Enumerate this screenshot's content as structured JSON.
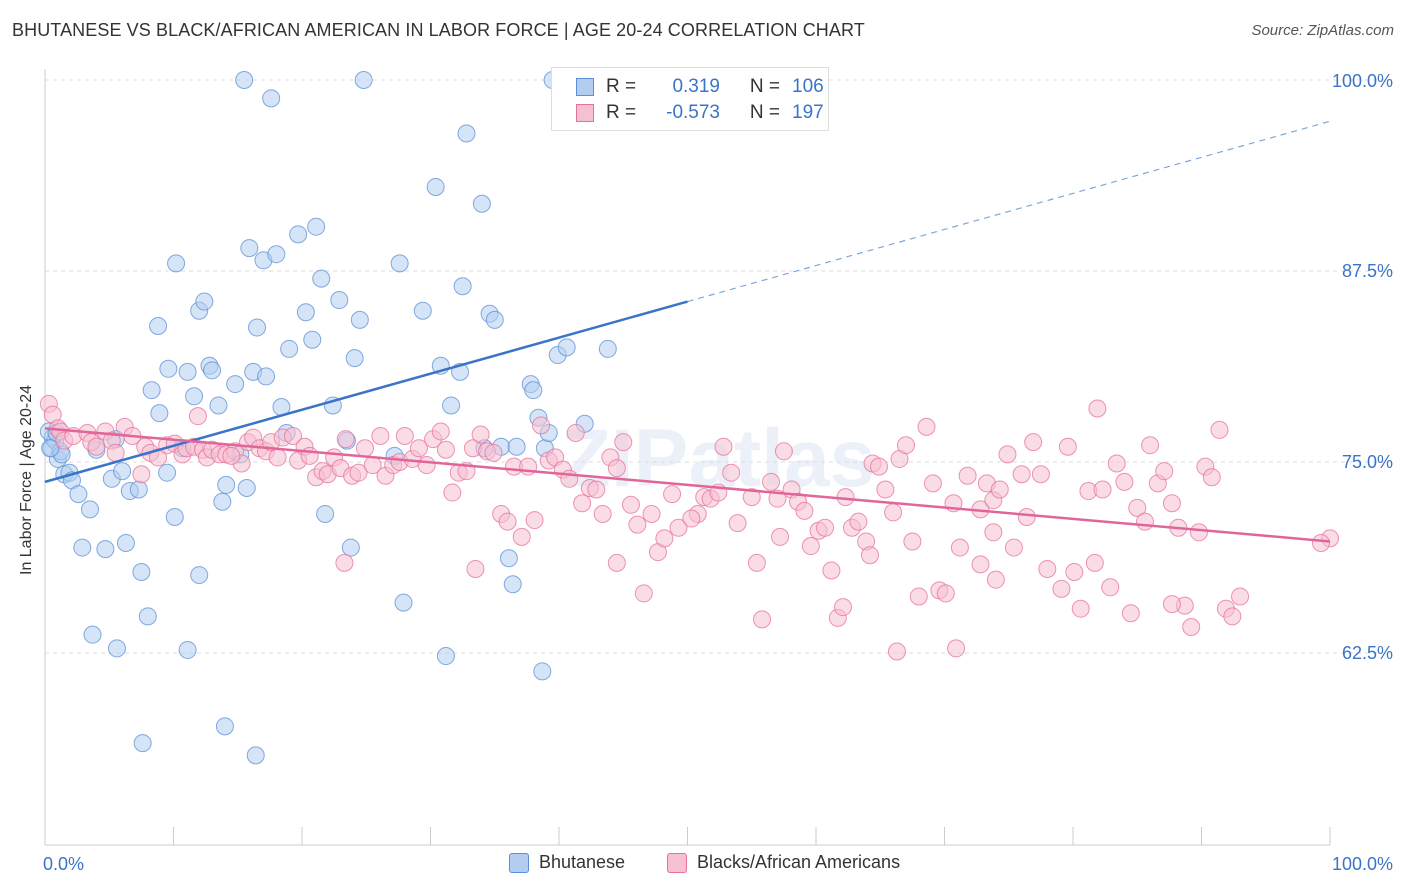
{
  "title": "BHUTANESE VS BLACK/AFRICAN AMERICAN IN LABOR FORCE | AGE 20-24 CORRELATION CHART",
  "source": "Source: ZipAtlas.com",
  "watermark": "ZIPatlas",
  "colors": {
    "blue": "#5b8fd6",
    "blue_fill": "#b3cdf0",
    "pink": "#e8709a",
    "pink_fill": "#f5c0d2",
    "axis_label": "#3a74c8",
    "grid": "#dddddd"
  },
  "legend_top": [
    {
      "r_label": "R =",
      "r": "0.319",
      "n_label": "N =",
      "n": "106"
    },
    {
      "r_label": "R =",
      "r": "-0.573",
      "n_label": "N =",
      "n": "197"
    }
  ],
  "chart_data": {
    "type": "scatter",
    "title": "BHUTANESE VS BLACK/AFRICAN AMERICAN IN LABOR FORCE | AGE 20-24 CORRELATION CHART",
    "xlabel": "",
    "ylabel": "In Labor Force | Age 20-24",
    "xlim": [
      0,
      100
    ],
    "ylim": [
      52.5,
      101.5
    ],
    "x_tick_labels": [
      "0.0%",
      "100.0%"
    ],
    "y_ticks": [
      62.5,
      75.0,
      87.5,
      100.0
    ],
    "y_tick_labels": [
      "62.5%",
      "75.0%",
      "87.5%",
      "100.0%"
    ],
    "grid": true,
    "legend": "bottom",
    "series": [
      {
        "name": "Bhutanese",
        "trend": {
          "x0": 0,
          "y0": 73.7,
          "x1": 50,
          "y1": 85.5,
          "dashed_to_x": 100,
          "dashed_to_y": 97.3
        },
        "points": [
          [
            0.5,
            75.9
          ],
          [
            0.6,
            76.6
          ],
          [
            0.8,
            76.4
          ],
          [
            1.0,
            75.2
          ],
          [
            1.2,
            75.7
          ],
          [
            1.5,
            74.2
          ],
          [
            1.9,
            74.3
          ],
          [
            2.1,
            73.8
          ],
          [
            2.6,
            72.9
          ],
          [
            3.5,
            71.9
          ],
          [
            4.0,
            75.8
          ],
          [
            5.2,
            73.9
          ],
          [
            5.5,
            76.5
          ],
          [
            6.0,
            74.4
          ],
          [
            6.6,
            73.1
          ],
          [
            7.3,
            73.2
          ],
          [
            8.3,
            79.7
          ],
          [
            8.8,
            83.9
          ],
          [
            8.9,
            78.2
          ],
          [
            9.5,
            74.3
          ],
          [
            9.6,
            81.1
          ],
          [
            10.1,
            71.4
          ],
          [
            10.2,
            88.0
          ],
          [
            10.7,
            75.9
          ],
          [
            11.1,
            80.9
          ],
          [
            11.6,
            79.3
          ],
          [
            12.0,
            84.9
          ],
          [
            12.4,
            85.5
          ],
          [
            12.8,
            81.3
          ],
          [
            13.0,
            81.0
          ],
          [
            13.5,
            78.7
          ],
          [
            13.8,
            72.4
          ],
          [
            14.1,
            73.5
          ],
          [
            14.8,
            80.1
          ],
          [
            15.2,
            75.5
          ],
          [
            15.5,
            100.0
          ],
          [
            15.7,
            73.3
          ],
          [
            15.9,
            89.0
          ],
          [
            16.2,
            80.9
          ],
          [
            16.5,
            83.8
          ],
          [
            17.0,
            88.2
          ],
          [
            17.2,
            80.6
          ],
          [
            17.6,
            98.8
          ],
          [
            18.0,
            88.6
          ],
          [
            18.4,
            78.6
          ],
          [
            18.8,
            76.9
          ],
          [
            19.0,
            82.4
          ],
          [
            19.7,
            89.9
          ],
          [
            20.3,
            84.8
          ],
          [
            20.8,
            83.0
          ],
          [
            21.1,
            90.4
          ],
          [
            21.5,
            87.0
          ],
          [
            21.8,
            71.6
          ],
          [
            22.4,
            78.7
          ],
          [
            22.9,
            85.6
          ],
          [
            23.5,
            76.4
          ],
          [
            23.8,
            69.4
          ],
          [
            24.1,
            81.8
          ],
          [
            24.5,
            84.3
          ],
          [
            24.8,
            100.0
          ],
          [
            27.2,
            75.4
          ],
          [
            27.6,
            88.0
          ],
          [
            27.9,
            65.8
          ],
          [
            29.4,
            84.9
          ],
          [
            30.4,
            93.0
          ],
          [
            30.8,
            81.3
          ],
          [
            31.2,
            62.3
          ],
          [
            31.6,
            78.7
          ],
          [
            32.3,
            80.9
          ],
          [
            32.5,
            86.5
          ],
          [
            32.8,
            96.5
          ],
          [
            34.0,
            91.9
          ],
          [
            34.2,
            75.9
          ],
          [
            34.6,
            84.7
          ],
          [
            35.0,
            84.3
          ],
          [
            35.5,
            76.0
          ],
          [
            36.1,
            68.7
          ],
          [
            36.4,
            67.0
          ],
          [
            36.7,
            76.0
          ],
          [
            37.8,
            80.1
          ],
          [
            38.0,
            79.7
          ],
          [
            38.4,
            77.9
          ],
          [
            38.7,
            61.3
          ],
          [
            38.9,
            75.9
          ],
          [
            39.2,
            76.9
          ],
          [
            39.5,
            100.0
          ],
          [
            39.9,
            82.0
          ],
          [
            40.6,
            82.5
          ],
          [
            42.0,
            77.5
          ],
          [
            43.8,
            82.4
          ],
          [
            2.9,
            69.4
          ],
          [
            3.7,
            63.7
          ],
          [
            5.6,
            62.8
          ],
          [
            6.3,
            69.7
          ],
          [
            7.5,
            67.8
          ],
          [
            7.6,
            56.6
          ],
          [
            8.0,
            64.9
          ],
          [
            11.1,
            62.7
          ],
          [
            12.0,
            67.6
          ],
          [
            14.0,
            57.7
          ],
          [
            16.4,
            55.8
          ],
          [
            4.7,
            69.3
          ],
          [
            0.3,
            77.0
          ],
          [
            0.9,
            76.9
          ],
          [
            1.3,
            75.5
          ],
          [
            0.4,
            75.9
          ]
        ]
      },
      {
        "name": "Blacks/African Americans",
        "trend": {
          "x0": 0,
          "y0": 77.2,
          "x1": 100,
          "y1": 69.8
        },
        "points": [
          [
            0.3,
            78.8
          ],
          [
            0.6,
            78.1
          ],
          [
            1.0,
            77.2
          ],
          [
            1.2,
            77.0
          ],
          [
            1.5,
            76.4
          ],
          [
            2.2,
            76.7
          ],
          [
            3.3,
            76.9
          ],
          [
            3.6,
            76.3
          ],
          [
            4.0,
            76.0
          ],
          [
            4.7,
            77.0
          ],
          [
            5.2,
            76.4
          ],
          [
            5.5,
            75.6
          ],
          [
            6.2,
            77.3
          ],
          [
            6.8,
            76.7
          ],
          [
            7.5,
            74.2
          ],
          [
            7.8,
            76.0
          ],
          [
            8.2,
            75.6
          ],
          [
            8.8,
            75.3
          ],
          [
            9.5,
            76.1
          ],
          [
            10.1,
            76.2
          ],
          [
            10.7,
            75.5
          ],
          [
            11.0,
            75.9
          ],
          [
            11.6,
            76.0
          ],
          [
            11.9,
            78.0
          ],
          [
            12.3,
            75.8
          ],
          [
            12.6,
            75.3
          ],
          [
            13.0,
            75.8
          ],
          [
            13.6,
            75.5
          ],
          [
            14.1,
            75.5
          ],
          [
            14.8,
            75.7
          ],
          [
            15.3,
            74.9
          ],
          [
            15.8,
            76.3
          ],
          [
            16.2,
            76.6
          ],
          [
            16.7,
            75.9
          ],
          [
            17.2,
            75.7
          ],
          [
            17.6,
            76.3
          ],
          [
            18.1,
            75.3
          ],
          [
            18.5,
            76.6
          ],
          [
            19.3,
            76.7
          ],
          [
            19.7,
            75.1
          ],
          [
            20.2,
            76.0
          ],
          [
            20.6,
            75.4
          ],
          [
            21.1,
            74.0
          ],
          [
            21.6,
            74.4
          ],
          [
            22.0,
            74.2
          ],
          [
            22.5,
            75.3
          ],
          [
            23.0,
            74.6
          ],
          [
            23.4,
            76.5
          ],
          [
            23.9,
            74.1
          ],
          [
            24.4,
            74.3
          ],
          [
            24.9,
            75.9
          ],
          [
            25.5,
            74.8
          ],
          [
            26.1,
            76.7
          ],
          [
            26.5,
            74.1
          ],
          [
            27.1,
            74.8
          ],
          [
            27.6,
            75.0
          ],
          [
            28.0,
            76.7
          ],
          [
            28.6,
            75.2
          ],
          [
            29.1,
            75.9
          ],
          [
            29.7,
            74.8
          ],
          [
            30.2,
            76.5
          ],
          [
            30.8,
            77.0
          ],
          [
            31.2,
            75.8
          ],
          [
            31.7,
            73.0
          ],
          [
            32.2,
            74.3
          ],
          [
            32.8,
            74.4
          ],
          [
            33.3,
            75.9
          ],
          [
            33.9,
            76.8
          ],
          [
            34.4,
            75.7
          ],
          [
            34.9,
            75.6
          ],
          [
            35.5,
            71.6
          ],
          [
            36.0,
            71.1
          ],
          [
            36.5,
            74.7
          ],
          [
            37.1,
            70.1
          ],
          [
            37.6,
            74.7
          ],
          [
            38.1,
            71.2
          ],
          [
            38.6,
            77.4
          ],
          [
            39.2,
            75.1
          ],
          [
            39.7,
            75.3
          ],
          [
            40.3,
            74.5
          ],
          [
            40.8,
            73.9
          ],
          [
            41.3,
            76.9
          ],
          [
            41.8,
            72.3
          ],
          [
            42.4,
            73.3
          ],
          [
            42.9,
            73.2
          ],
          [
            43.4,
            71.6
          ],
          [
            44.0,
            75.3
          ],
          [
            44.5,
            74.6
          ],
          [
            45.0,
            76.3
          ],
          [
            45.6,
            72.2
          ],
          [
            46.1,
            70.9
          ],
          [
            46.6,
            66.4
          ],
          [
            47.2,
            71.6
          ],
          [
            47.7,
            69.1
          ],
          [
            48.2,
            70.0
          ],
          [
            48.8,
            72.9
          ],
          [
            49.3,
            70.7
          ],
          [
            50.8,
            71.6
          ],
          [
            51.3,
            72.7
          ],
          [
            51.8,
            72.6
          ],
          [
            52.4,
            73.0
          ],
          [
            52.8,
            76.0
          ],
          [
            53.4,
            74.3
          ],
          [
            53.9,
            71.0
          ],
          [
            55.0,
            72.7
          ],
          [
            55.4,
            68.4
          ],
          [
            55.8,
            64.7
          ],
          [
            56.5,
            73.7
          ],
          [
            57.0,
            72.6
          ],
          [
            57.5,
            75.7
          ],
          [
            58.1,
            73.2
          ],
          [
            58.6,
            72.4
          ],
          [
            59.1,
            71.8
          ],
          [
            59.6,
            69.5
          ],
          [
            60.2,
            70.5
          ],
          [
            60.7,
            70.7
          ],
          [
            61.2,
            67.9
          ],
          [
            61.7,
            64.8
          ],
          [
            62.3,
            72.7
          ],
          [
            62.8,
            70.7
          ],
          [
            63.3,
            71.1
          ],
          [
            63.9,
            69.8
          ],
          [
            64.4,
            74.9
          ],
          [
            64.9,
            74.7
          ],
          [
            65.4,
            73.2
          ],
          [
            66.0,
            71.7
          ],
          [
            66.5,
            75.2
          ],
          [
            67.0,
            76.1
          ],
          [
            67.5,
            69.8
          ],
          [
            68.0,
            66.2
          ],
          [
            68.6,
            77.3
          ],
          [
            69.1,
            73.6
          ],
          [
            69.6,
            66.6
          ],
          [
            70.1,
            66.4
          ],
          [
            70.7,
            72.3
          ],
          [
            71.2,
            69.4
          ],
          [
            71.8,
            74.1
          ],
          [
            72.8,
            71.9
          ],
          [
            73.3,
            73.6
          ],
          [
            73.8,
            72.5
          ],
          [
            74.3,
            73.2
          ],
          [
            74.9,
            75.5
          ],
          [
            75.4,
            69.4
          ],
          [
            76.0,
            74.2
          ],
          [
            76.4,
            71.4
          ],
          [
            76.9,
            76.3
          ],
          [
            77.5,
            74.2
          ],
          [
            78.0,
            68.0
          ],
          [
            79.1,
            66.7
          ],
          [
            79.6,
            76.0
          ],
          [
            80.1,
            67.8
          ],
          [
            80.6,
            65.4
          ],
          [
            81.2,
            73.1
          ],
          [
            81.7,
            68.4
          ],
          [
            82.3,
            73.2
          ],
          [
            82.9,
            66.8
          ],
          [
            83.4,
            74.9
          ],
          [
            84.0,
            73.7
          ],
          [
            84.5,
            65.1
          ],
          [
            85.0,
            72.0
          ],
          [
            85.6,
            71.1
          ],
          [
            86.0,
            76.1
          ],
          [
            86.6,
            73.6
          ],
          [
            87.1,
            74.4
          ],
          [
            87.7,
            72.3
          ],
          [
            88.2,
            70.7
          ],
          [
            88.7,
            65.6
          ],
          [
            89.2,
            64.2
          ],
          [
            89.8,
            70.4
          ],
          [
            90.3,
            74.7
          ],
          [
            90.8,
            74.0
          ],
          [
            91.4,
            77.1
          ],
          [
            91.9,
            65.4
          ],
          [
            92.4,
            64.9
          ],
          [
            93.0,
            66.2
          ],
          [
            81.9,
            78.5
          ],
          [
            87.7,
            65.7
          ],
          [
            74.0,
            67.3
          ],
          [
            70.9,
            62.8
          ],
          [
            72.8,
            68.3
          ],
          [
            73.8,
            70.4
          ],
          [
            62.1,
            65.5
          ],
          [
            64.2,
            68.9
          ],
          [
            57.2,
            70.1
          ],
          [
            50.3,
            71.3
          ],
          [
            44.5,
            68.4
          ],
          [
            66.3,
            62.6
          ],
          [
            33.5,
            68.0
          ],
          [
            23.3,
            68.4
          ],
          [
            14.5,
            75.4
          ],
          [
            100.0,
            70.0
          ],
          [
            99.3,
            69.7
          ]
        ]
      }
    ]
  }
}
